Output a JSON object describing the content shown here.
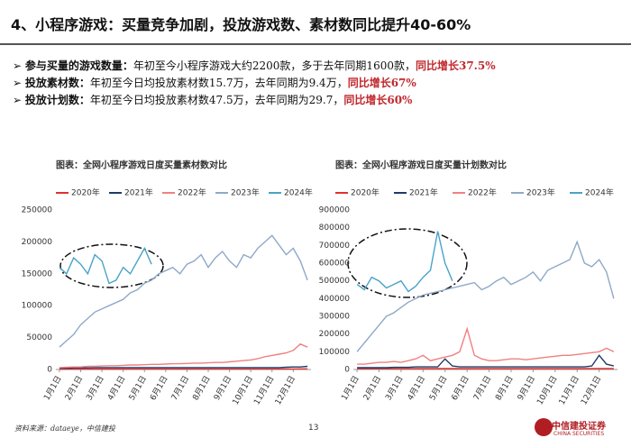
{
  "title": "4、小程序游戏：买量竞争加剧，投放游戏数、素材数同比提升40-60%",
  "bullets": [
    {
      "label": "参与买量的游戏数量：",
      "text": "年初至今小程序游戏大约2200款，多于去年同期1600款，",
      "highlight": "同比增长37.5%"
    },
    {
      "label": "投放素材数：",
      "text": "年初至今日均投放素材数15.7万，去年同期为9.4万，",
      "highlight": "同比增长67%"
    },
    {
      "label": "投放计划数：",
      "text": "年初至今日均投放素材数47.5万，去年同期为29.7，",
      "highlight": "同比增长60%"
    }
  ],
  "chart_data": [
    {
      "type": "line",
      "title": "图表：全网小程序游戏日度买量素材数对比",
      "categories": [
        "1月1日",
        null,
        null,
        "2月1日",
        null,
        null,
        "3月1日",
        null,
        null,
        "4月1日",
        null,
        null,
        "5月1日",
        null,
        null,
        "6月1日",
        null,
        null,
        "7月1日",
        null,
        null,
        "8月1日",
        null,
        null,
        "9月1日",
        null,
        null,
        "10月1日",
        null,
        null,
        "11月1日",
        null,
        null,
        "12月1日",
        null,
        null
      ],
      "ylim": [
        0,
        250000
      ],
      "yticks": [
        0,
        50000,
        100000,
        150000,
        200000,
        250000
      ],
      "series": [
        {
          "name": "2020年",
          "color": "#e03030",
          "values": [
            500,
            500,
            600,
            600,
            600,
            700,
            700,
            700,
            700,
            700,
            800,
            800,
            800,
            800,
            800,
            800,
            800,
            800,
            800,
            800,
            800,
            800,
            800,
            800,
            800,
            800,
            800,
            900,
            900,
            900,
            900,
            900,
            900,
            900,
            1000,
            1000
          ]
        },
        {
          "name": "2021年",
          "color": "#1f3b66",
          "values": [
            2000,
            2000,
            2500,
            2500,
            2500,
            3000,
            3000,
            3000,
            3000,
            3000,
            3000,
            3000,
            3000,
            3000,
            3000,
            3000,
            3000,
            3000,
            3000,
            3000,
            3000,
            3000,
            3000,
            3000,
            3000,
            3000,
            3000,
            3000,
            3000,
            3000,
            3000,
            3000,
            3500,
            4000,
            4000,
            5000
          ]
        },
        {
          "name": "2022年",
          "color": "#f08080",
          "values": [
            3000,
            3500,
            4000,
            4000,
            5000,
            5000,
            5500,
            6000,
            6000,
            6500,
            7000,
            7000,
            7500,
            8000,
            8000,
            8500,
            9000,
            9000,
            9500,
            10000,
            10000,
            10500,
            11000,
            11000,
            12000,
            13000,
            14000,
            15000,
            17000,
            20000,
            22000,
            24000,
            26000,
            30000,
            40000,
            35000
          ]
        },
        {
          "name": "2023年",
          "color": "#8ea9c8",
          "values": [
            35000,
            45000,
            55000,
            70000,
            80000,
            90000,
            95000,
            100000,
            105000,
            110000,
            120000,
            125000,
            135000,
            140000,
            150000,
            155000,
            160000,
            150000,
            165000,
            170000,
            180000,
            160000,
            175000,
            185000,
            170000,
            160000,
            180000,
            175000,
            190000,
            200000,
            210000,
            195000,
            180000,
            190000,
            170000,
            140000
          ]
        },
        {
          "name": "2024年",
          "color": "#4aa3c8",
          "values": [
            160000,
            150000,
            175000,
            165000,
            150000,
            180000,
            170000,
            135000,
            140000,
            160000,
            150000,
            170000,
            190000,
            165000,
            null,
            null,
            null,
            null,
            null,
            null,
            null,
            null,
            null,
            null,
            null,
            null,
            null,
            null,
            null,
            null,
            null,
            null,
            null,
            null,
            null,
            null
          ]
        }
      ]
    },
    {
      "type": "line",
      "title": "图表：全网小程序游戏日度买量计划数对比",
      "categories": [
        "1月1日",
        null,
        null,
        "2月1日",
        null,
        null,
        "3月1日",
        null,
        null,
        "4月1日",
        null,
        null,
        "5月1日",
        null,
        null,
        "6月1日",
        null,
        null,
        "7月1日",
        null,
        null,
        "8月1日",
        null,
        null,
        "9月1日",
        null,
        null,
        "10月1日",
        null,
        null,
        "11月1日",
        null,
        null,
        "12月1日",
        null,
        null
      ],
      "ylim": [
        0,
        900000
      ],
      "yticks": [
        0,
        100000,
        200000,
        300000,
        400000,
        500000,
        600000,
        700000,
        800000,
        900000
      ],
      "series": [
        {
          "name": "2020年",
          "color": "#e03030",
          "values": [
            5000,
            5000,
            5000,
            5000,
            5000,
            5000,
            5000,
            5000,
            5000,
            5000,
            5000,
            5000,
            5000,
            5000,
            5000,
            5000,
            5000,
            5000,
            5000,
            5000,
            5000,
            5000,
            5000,
            5000,
            5000,
            5000,
            5000,
            5000,
            5000,
            5000,
            5000,
            5000,
            5000,
            5000,
            5000,
            5000
          ]
        },
        {
          "name": "2021年",
          "color": "#1f3b66",
          "values": [
            10000,
            10000,
            10000,
            10000,
            10000,
            12000,
            12000,
            12000,
            15000,
            15000,
            15000,
            15000,
            60000,
            20000,
            15000,
            15000,
            15000,
            15000,
            15000,
            15000,
            15000,
            15000,
            15000,
            15000,
            15000,
            15000,
            15000,
            15000,
            15000,
            15000,
            15000,
            15000,
            20000,
            80000,
            30000,
            20000
          ]
        },
        {
          "name": "2022年",
          "color": "#f08080",
          "values": [
            30000,
            30000,
            35000,
            40000,
            40000,
            45000,
            40000,
            50000,
            60000,
            80000,
            50000,
            60000,
            70000,
            80000,
            100000,
            230000,
            80000,
            60000,
            50000,
            50000,
            55000,
            60000,
            60000,
            55000,
            60000,
            65000,
            70000,
            75000,
            80000,
            80000,
            85000,
            90000,
            95000,
            100000,
            120000,
            100000
          ]
        },
        {
          "name": "2023年",
          "color": "#8ea9c8",
          "values": [
            100000,
            150000,
            200000,
            250000,
            300000,
            320000,
            350000,
            380000,
            400000,
            420000,
            430000,
            440000,
            450000,
            460000,
            470000,
            480000,
            490000,
            450000,
            470000,
            500000,
            520000,
            480000,
            500000,
            520000,
            550000,
            500000,
            560000,
            580000,
            600000,
            620000,
            720000,
            600000,
            580000,
            620000,
            550000,
            400000
          ]
        },
        {
          "name": "2024年",
          "color": "#4aa3c8",
          "values": [
            480000,
            450000,
            520000,
            500000,
            460000,
            480000,
            500000,
            440000,
            470000,
            520000,
            560000,
            780000,
            600000,
            500000,
            null,
            null,
            null,
            null,
            null,
            null,
            null,
            null,
            null,
            null,
            null,
            null,
            null,
            null,
            null,
            null,
            null,
            null,
            null,
            null,
            null,
            null
          ]
        }
      ]
    }
  ],
  "footer": {
    "source": "资料来源：dataeye，中信建投",
    "page": "13",
    "logo": "中信建投证券",
    "logo_en": "CHINA SECURITIES"
  }
}
